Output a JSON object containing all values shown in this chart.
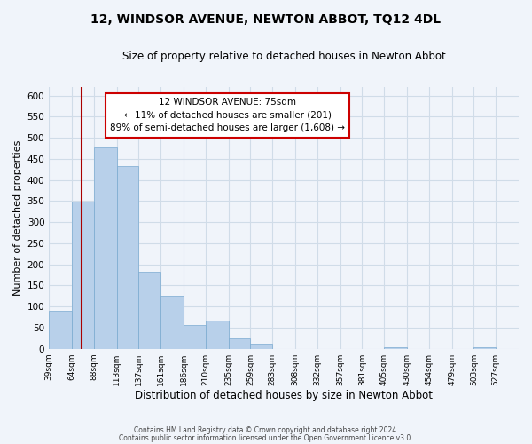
{
  "title": "12, WINDSOR AVENUE, NEWTON ABBOT, TQ12 4DL",
  "subtitle": "Size of property relative to detached houses in Newton Abbot",
  "xlabel": "Distribution of detached houses by size in Newton Abbot",
  "ylabel": "Number of detached properties",
  "bar_left_edges": [
    39,
    64,
    88,
    113,
    137,
    161,
    186,
    210,
    235,
    259,
    283,
    308,
    332,
    357,
    381,
    405,
    430,
    454,
    479,
    503
  ],
  "bar_widths": [
    25,
    24,
    25,
    24,
    24,
    25,
    24,
    25,
    24,
    24,
    25,
    24,
    25,
    24,
    24,
    25,
    24,
    25,
    24,
    24
  ],
  "bar_heights": [
    90,
    348,
    476,
    433,
    183,
    126,
    57,
    67,
    25,
    12,
    0,
    0,
    0,
    0,
    0,
    3,
    0,
    0,
    0,
    3
  ],
  "bar_color": "#b8d0ea",
  "bar_edge_color": "#7aaad0",
  "grid_color": "#d0dce8",
  "background_color": "#f0f4fa",
  "plot_bg_color": "#f0f4fa",
  "property_line_x": 75,
  "property_line_color": "#aa0000",
  "annotation_text_line1": "12 WINDSOR AVENUE: 75sqm",
  "annotation_text_line2": "← 11% of detached houses are smaller (201)",
  "annotation_text_line3": "89% of semi-detached houses are larger (1,608) →",
  "annotation_box_color": "#ffffff",
  "annotation_box_edgecolor": "#cc0000",
  "ylim": [
    0,
    620
  ],
  "xlim": [
    39,
    552
  ],
  "yticks": [
    0,
    50,
    100,
    150,
    200,
    250,
    300,
    350,
    400,
    450,
    500,
    550,
    600
  ],
  "tick_positions": [
    39,
    64,
    88,
    113,
    137,
    161,
    186,
    210,
    235,
    259,
    283,
    308,
    332,
    357,
    381,
    405,
    430,
    454,
    479,
    503,
    527
  ],
  "tick_labels": [
    "39sqm",
    "64sqm",
    "88sqm",
    "113sqm",
    "137sqm",
    "161sqm",
    "186sqm",
    "210sqm",
    "235sqm",
    "259sqm",
    "283sqm",
    "308sqm",
    "332sqm",
    "357sqm",
    "381sqm",
    "405sqm",
    "430sqm",
    "454sqm",
    "479sqm",
    "503sqm",
    "527sqm"
  ],
  "footer_line1": "Contains HM Land Registry data © Crown copyright and database right 2024.",
  "footer_line2": "Contains public sector information licensed under the Open Government Licence v3.0.",
  "title_fontsize": 10,
  "subtitle_fontsize": 8.5,
  "ylabel_fontsize": 8,
  "xlabel_fontsize": 8.5,
  "tick_fontsize": 6.5,
  "ytick_fontsize": 7.5,
  "footer_fontsize": 5.5,
  "annot_fontsize": 7.5
}
